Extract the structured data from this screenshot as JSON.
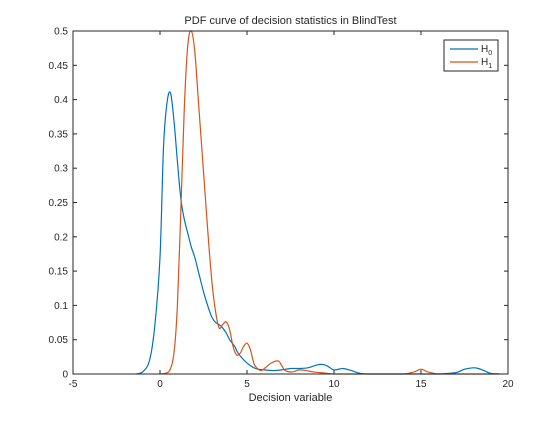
{
  "chart_data": {
    "type": "line",
    "title": "PDF curve of decision statistics in BlindTest",
    "xlabel": "Decision variable",
    "ylabel": "",
    "xlim": [
      -5,
      20
    ],
    "ylim": [
      0,
      0.5
    ],
    "xticks": [
      "-5",
      "0",
      "5",
      "10",
      "15",
      "20"
    ],
    "yticks": [
      "0",
      "0.05",
      "0.1",
      "0.15",
      "0.2",
      "0.25",
      "0.3",
      "0.35",
      "0.4",
      "0.45",
      "0.5"
    ],
    "grid": false,
    "legend_position": "top-right",
    "series": [
      {
        "name": "H0",
        "legend_main": "H",
        "legend_sub": "0",
        "color": "#0072BD",
        "x": [
          -1.4,
          -1.0,
          -0.6,
          -0.3,
          0.0,
          0.2,
          0.4,
          0.6,
          0.8,
          1.0,
          1.2,
          1.4,
          1.6,
          1.8,
          2.0,
          2.2,
          2.5,
          2.8,
          3.0,
          3.2,
          3.5,
          3.8,
          4.0,
          4.3,
          4.5,
          5.0,
          5.5,
          6.0,
          6.5,
          7.0,
          7.5,
          8.0,
          8.5,
          9.0,
          9.3,
          9.6,
          10.0,
          10.5,
          11.0,
          11.5,
          12.0,
          13.0,
          14.0,
          15.0,
          16.0,
          17.0,
          17.5,
          18.0,
          18.3,
          18.7,
          19.0,
          19.5
        ],
        "y": [
          0.0,
          0.003,
          0.02,
          0.07,
          0.17,
          0.33,
          0.395,
          0.41,
          0.37,
          0.31,
          0.255,
          0.225,
          0.205,
          0.185,
          0.17,
          0.15,
          0.12,
          0.095,
          0.082,
          0.075,
          0.07,
          0.06,
          0.05,
          0.04,
          0.03,
          0.016,
          0.008,
          0.006,
          0.005,
          0.006,
          0.008,
          0.008,
          0.009,
          0.013,
          0.014,
          0.012,
          0.006,
          0.008,
          0.005,
          0.001,
          0.0,
          0.0,
          0.0,
          0.0,
          0.0,
          0.002,
          0.007,
          0.009,
          0.008,
          0.004,
          0.001,
          0.0
        ]
      },
      {
        "name": "H1",
        "legend_main": "H",
        "legend_sub": "1",
        "color": "#D95319",
        "x": [
          0.0,
          0.5,
          0.8,
          1.0,
          1.2,
          1.4,
          1.6,
          1.8,
          2.0,
          2.2,
          2.4,
          2.6,
          2.8,
          3.0,
          3.2,
          3.4,
          3.6,
          3.8,
          4.0,
          4.2,
          4.4,
          4.6,
          4.8,
          5.0,
          5.2,
          5.4,
          5.6,
          5.8,
          6.0,
          6.4,
          6.8,
          7.0,
          7.2,
          7.6,
          8.0,
          8.4,
          8.8,
          9.2,
          9.6,
          10.0,
          11.0,
          12.0,
          13.0,
          14.0,
          14.6,
          15.0,
          15.4,
          16.0,
          17.0,
          18.0,
          19.0,
          19.5
        ],
        "y": [
          0.0,
          0.003,
          0.03,
          0.1,
          0.24,
          0.39,
          0.48,
          0.5,
          0.47,
          0.4,
          0.33,
          0.26,
          0.19,
          0.13,
          0.09,
          0.067,
          0.072,
          0.076,
          0.065,
          0.04,
          0.028,
          0.03,
          0.04,
          0.045,
          0.035,
          0.015,
          0.008,
          0.005,
          0.008,
          0.016,
          0.019,
          0.012,
          0.005,
          0.003,
          0.006,
          0.005,
          0.003,
          0.002,
          0.001,
          0.0,
          0.0,
          0.0,
          0.0,
          0.0,
          0.003,
          0.007,
          0.003,
          0.0,
          0.0,
          0.0,
          0.0,
          0.0
        ]
      }
    ]
  }
}
